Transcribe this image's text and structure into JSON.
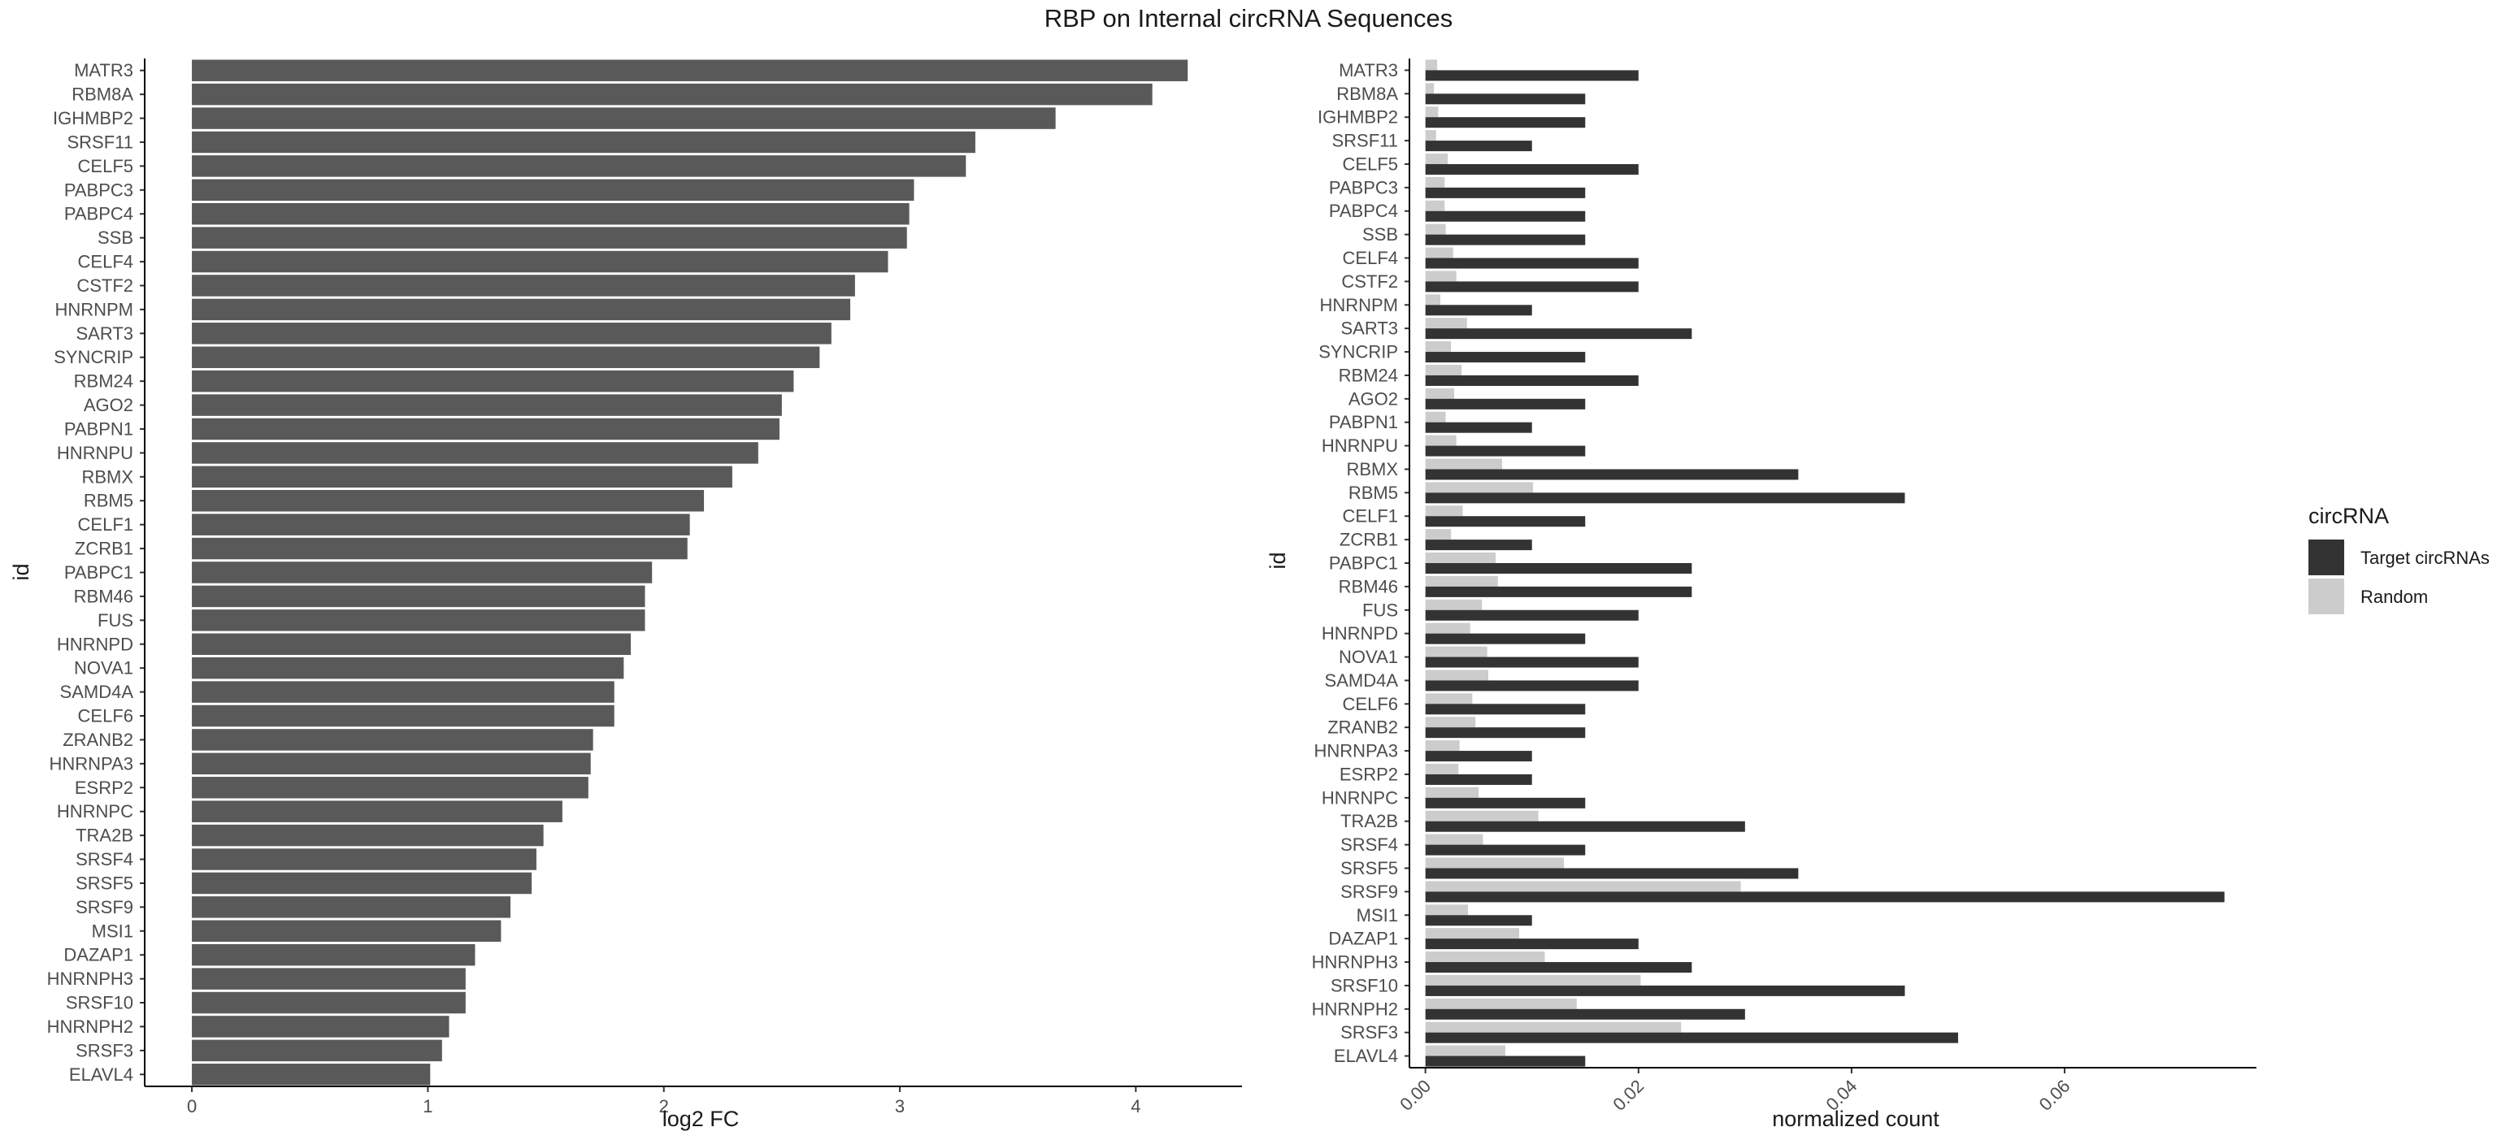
{
  "title": "RBP on Internal circRNA Sequences",
  "chart_data": [
    {
      "type": "bar",
      "orientation": "horizontal",
      "xlabel": "log2 FC",
      "ylabel": "id",
      "xlim": [
        -0.2,
        4.45
      ],
      "xticks": [
        0,
        1,
        2,
        3,
        4
      ],
      "grid": false,
      "bar_color": "#595959",
      "categories": [
        "MATR3",
        "RBM8A",
        "IGHMBP2",
        "SRSF11",
        "CELF5",
        "PABPC3",
        "PABPC4",
        "SSB",
        "CELF4",
        "CSTF2",
        "HNRNPM",
        "SART3",
        "SYNCRIP",
        "RBM24",
        "AGO2",
        "PABPN1",
        "HNRNPU",
        "RBMX",
        "RBM5",
        "CELF1",
        "ZCRB1",
        "PABPC1",
        "RBM46",
        "FUS",
        "HNRNPD",
        "NOVA1",
        "SAMD4A",
        "CELF6",
        "ZRANB2",
        "HNRNPA3",
        "ESRP2",
        "HNRNPC",
        "TRA2B",
        "SRSF4",
        "SRSF5",
        "SRSF9",
        "MSI1",
        "DAZAP1",
        "HNRNPH3",
        "SRSF10",
        "HNRNPH2",
        "SRSF3",
        "ELAVL4"
      ],
      "values": [
        4.22,
        4.07,
        3.66,
        3.32,
        3.28,
        3.06,
        3.04,
        3.03,
        2.95,
        2.81,
        2.79,
        2.71,
        2.66,
        2.55,
        2.5,
        2.49,
        2.4,
        2.29,
        2.17,
        2.11,
        2.1,
        1.95,
        1.92,
        1.92,
        1.86,
        1.83,
        1.79,
        1.79,
        1.7,
        1.69,
        1.68,
        1.57,
        1.49,
        1.46,
        1.44,
        1.35,
        1.31,
        1.2,
        1.16,
        1.16,
        1.09,
        1.06,
        1.01
      ]
    },
    {
      "type": "bar",
      "orientation": "horizontal",
      "grouped": true,
      "xlabel": "normalized count",
      "ylabel": "id",
      "xlim": [
        -0.0015,
        0.078
      ],
      "xticks": [
        "0.00",
        "0.02",
        "0.04",
        "0.06"
      ],
      "xtick_values": [
        0,
        0.02,
        0.04,
        0.06
      ],
      "grid": false,
      "legend_title": "circRNA",
      "legend_position": "right",
      "categories": [
        "MATR3",
        "RBM8A",
        "IGHMBP2",
        "SRSF11",
        "CELF5",
        "PABPC3",
        "PABPC4",
        "SSB",
        "CELF4",
        "CSTF2",
        "HNRNPM",
        "SART3",
        "SYNCRIP",
        "RBM24",
        "AGO2",
        "PABPN1",
        "HNRNPU",
        "RBMX",
        "RBM5",
        "CELF1",
        "ZCRB1",
        "PABPC1",
        "RBM46",
        "FUS",
        "HNRNPD",
        "NOVA1",
        "SAMD4A",
        "CELF6",
        "ZRANB2",
        "HNRNPA3",
        "ESRP2",
        "HNRNPC",
        "TRA2B",
        "SRSF4",
        "SRSF5",
        "SRSF9",
        "MSI1",
        "DAZAP1",
        "HNRNPH3",
        "SRSF10",
        "HNRNPH2",
        "SRSF3",
        "ELAVL4"
      ],
      "series": [
        {
          "name": "Target circRNAs",
          "color": "#333333",
          "values": [
            0.02,
            0.015,
            0.015,
            0.01,
            0.02,
            0.015,
            0.015,
            0.015,
            0.02,
            0.02,
            0.01,
            0.025,
            0.015,
            0.02,
            0.015,
            0.01,
            0.015,
            0.035,
            0.045,
            0.015,
            0.01,
            0.025,
            0.025,
            0.02,
            0.015,
            0.02,
            0.02,
            0.015,
            0.015,
            0.01,
            0.01,
            0.015,
            0.03,
            0.015,
            0.035,
            0.075,
            0.01,
            0.02,
            0.025,
            0.045,
            0.03,
            0.05,
            0.015
          ]
        },
        {
          "name": "Random",
          "color": "#cccccc",
          "values": [
            0.0011,
            0.0008,
            0.0012,
            0.001,
            0.0021,
            0.0018,
            0.0018,
            0.0019,
            0.0026,
            0.0029,
            0.0014,
            0.0039,
            0.0024,
            0.0034,
            0.0027,
            0.0019,
            0.0029,
            0.0072,
            0.0101,
            0.0035,
            0.0024,
            0.0066,
            0.0068,
            0.0053,
            0.0042,
            0.0058,
            0.0059,
            0.0044,
            0.0047,
            0.0032,
            0.0031,
            0.005,
            0.0106,
            0.0054,
            0.013,
            0.0296,
            0.004,
            0.0088,
            0.0112,
            0.0202,
            0.0142,
            0.024,
            0.0075
          ]
        }
      ]
    }
  ]
}
